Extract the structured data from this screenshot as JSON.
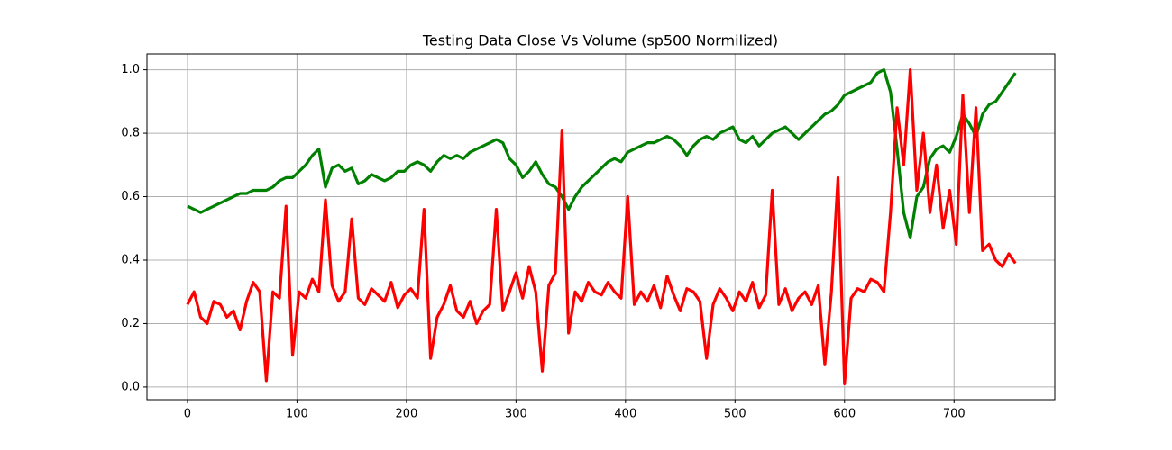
{
  "chart_data": {
    "type": "line",
    "title": "Testing Data Close Vs Volume (sp500 Normilized)",
    "x": [
      0,
      6,
      12,
      18,
      24,
      30,
      36,
      42,
      48,
      54,
      60,
      66,
      72,
      78,
      84,
      90,
      96,
      102,
      108,
      114,
      120,
      126,
      132,
      138,
      144,
      150,
      156,
      162,
      168,
      174,
      180,
      186,
      192,
      198,
      204,
      210,
      216,
      222,
      228,
      234,
      240,
      246,
      252,
      258,
      264,
      270,
      276,
      282,
      288,
      294,
      300,
      306,
      312,
      318,
      324,
      330,
      336,
      342,
      348,
      354,
      360,
      366,
      372,
      378,
      384,
      390,
      396,
      402,
      408,
      414,
      420,
      426,
      432,
      438,
      444,
      450,
      456,
      462,
      468,
      474,
      480,
      486,
      492,
      498,
      504,
      510,
      516,
      522,
      528,
      534,
      540,
      546,
      552,
      558,
      564,
      570,
      576,
      582,
      588,
      594,
      600,
      606,
      612,
      618,
      624,
      630,
      636,
      642,
      648,
      654,
      660,
      666,
      672,
      678,
      684,
      690,
      696,
      702,
      708,
      714,
      720,
      726,
      732,
      738,
      744,
      750,
      756
    ],
    "series": [
      {
        "color": "#008000",
        "values": [
          0.57,
          0.56,
          0.55,
          0.56,
          0.57,
          0.58,
          0.59,
          0.6,
          0.61,
          0.61,
          0.62,
          0.62,
          0.62,
          0.63,
          0.65,
          0.66,
          0.66,
          0.68,
          0.7,
          0.73,
          0.75,
          0.63,
          0.69,
          0.7,
          0.68,
          0.69,
          0.64,
          0.65,
          0.67,
          0.66,
          0.65,
          0.66,
          0.68,
          0.68,
          0.7,
          0.71,
          0.7,
          0.68,
          0.71,
          0.73,
          0.72,
          0.73,
          0.72,
          0.74,
          0.75,
          0.76,
          0.77,
          0.78,
          0.77,
          0.72,
          0.7,
          0.66,
          0.68,
          0.71,
          0.67,
          0.64,
          0.63,
          0.6,
          0.56,
          0.6,
          0.63,
          0.65,
          0.67,
          0.69,
          0.71,
          0.72,
          0.71,
          0.74,
          0.75,
          0.76,
          0.77,
          0.77,
          0.78,
          0.79,
          0.78,
          0.76,
          0.73,
          0.76,
          0.78,
          0.79,
          0.78,
          0.8,
          0.81,
          0.82,
          0.78,
          0.77,
          0.79,
          0.76,
          0.78,
          0.8,
          0.81,
          0.82,
          0.8,
          0.78,
          0.8,
          0.82,
          0.84,
          0.86,
          0.87,
          0.89,
          0.92,
          0.93,
          0.94,
          0.95,
          0.96,
          0.99,
          1.0,
          0.93,
          0.75,
          0.55,
          0.47,
          0.6,
          0.63,
          0.72,
          0.75,
          0.76,
          0.74,
          0.79,
          0.86,
          0.83,
          0.79,
          0.86,
          0.89,
          0.9,
          0.93,
          0.96,
          0.99
        ]
      },
      {
        "color": "#ff0000",
        "values": [
          0.26,
          0.3,
          0.22,
          0.2,
          0.27,
          0.26,
          0.22,
          0.24,
          0.18,
          0.27,
          0.33,
          0.3,
          0.02,
          0.3,
          0.28,
          0.57,
          0.1,
          0.3,
          0.28,
          0.34,
          0.3,
          0.59,
          0.32,
          0.27,
          0.3,
          0.53,
          0.28,
          0.26,
          0.31,
          0.29,
          0.27,
          0.33,
          0.25,
          0.29,
          0.31,
          0.28,
          0.56,
          0.09,
          0.22,
          0.26,
          0.32,
          0.24,
          0.22,
          0.27,
          0.2,
          0.24,
          0.26,
          0.56,
          0.24,
          0.3,
          0.36,
          0.28,
          0.38,
          0.3,
          0.05,
          0.32,
          0.36,
          0.81,
          0.17,
          0.3,
          0.27,
          0.33,
          0.3,
          0.29,
          0.33,
          0.3,
          0.28,
          0.6,
          0.26,
          0.3,
          0.27,
          0.32,
          0.25,
          0.35,
          0.29,
          0.24,
          0.31,
          0.3,
          0.27,
          0.09,
          0.26,
          0.31,
          0.28,
          0.24,
          0.3,
          0.27,
          0.33,
          0.25,
          0.29,
          0.62,
          0.26,
          0.31,
          0.24,
          0.28,
          0.3,
          0.26,
          0.32,
          0.07,
          0.3,
          0.66,
          0.01,
          0.28,
          0.31,
          0.3,
          0.34,
          0.33,
          0.3,
          0.55,
          0.88,
          0.7,
          1.0,
          0.62,
          0.8,
          0.55,
          0.7,
          0.5,
          0.62,
          0.45,
          0.92,
          0.55,
          0.88,
          0.43,
          0.45,
          0.4,
          0.38,
          0.42,
          0.39
        ]
      }
    ],
    "xlim": [
      -37,
      792
    ],
    "ylim": [
      -0.04,
      1.05
    ],
    "xticks": [
      0,
      100,
      200,
      300,
      400,
      500,
      600,
      700
    ],
    "yticks": [
      {
        "value": 0,
        "label": "0.0"
      },
      0.2,
      0.4,
      0.6,
      0.8,
      {
        "value": 1,
        "label": "1.0"
      }
    ],
    "grid": true
  }
}
